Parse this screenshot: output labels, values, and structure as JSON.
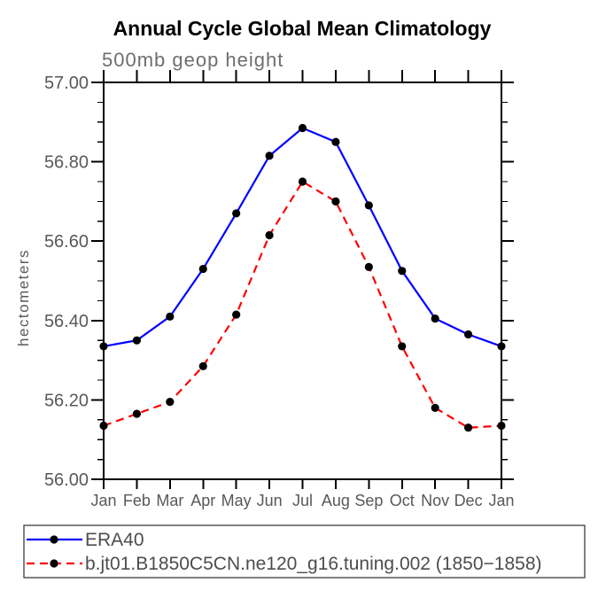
{
  "chart": {
    "title": "Annual Cycle Global Mean Climatology",
    "subtitle": "500mb geop height",
    "ylabel": "hectometers"
  },
  "colors": {
    "era40_line": "#0000ff",
    "model_line": "#ff0000",
    "marker": "#000000",
    "axis": "#000000",
    "tick_label": "#585858",
    "subtitle_text": "#6e6e6e",
    "legend_text": "#4d4d4d",
    "background": "#ffffff"
  },
  "chart_data": {
    "type": "line",
    "title": "Annual Cycle Global Mean Climatology",
    "subtitle": "500mb geop height",
    "xlabel": "",
    "ylabel": "hectometers",
    "categories": [
      "Jan",
      "Feb",
      "Mar",
      "Apr",
      "May",
      "Jun",
      "Jul",
      "Aug",
      "Sep",
      "Oct",
      "Nov",
      "Dec",
      "Jan"
    ],
    "ylim": [
      56.0,
      57.0
    ],
    "ytick_interval": 0.2,
    "yminor_interval": 0.05,
    "ytick_labels": [
      "56.00",
      "56.20",
      "56.40",
      "56.60",
      "56.80",
      "57.00"
    ],
    "grid": false,
    "legend_position": "bottom-left-box",
    "marker": "filled-circle",
    "marker_color": "#000000",
    "series": [
      {
        "name": "ERA40",
        "color": "#0000ff",
        "line_style": "solid",
        "values": [
          56.335,
          56.35,
          56.41,
          56.53,
          56.67,
          56.815,
          56.885,
          56.85,
          56.69,
          56.525,
          56.405,
          56.365,
          56.335
        ]
      },
      {
        "name": "b.jt01.B1850C5CN.ne120_g16.tuning.002 (1850−1858)",
        "color": "#ff0000",
        "line_style": "dashed",
        "values": [
          56.135,
          56.165,
          56.195,
          56.285,
          56.415,
          56.615,
          56.75,
          56.7,
          56.535,
          56.335,
          56.18,
          56.13,
          56.135
        ]
      }
    ]
  }
}
